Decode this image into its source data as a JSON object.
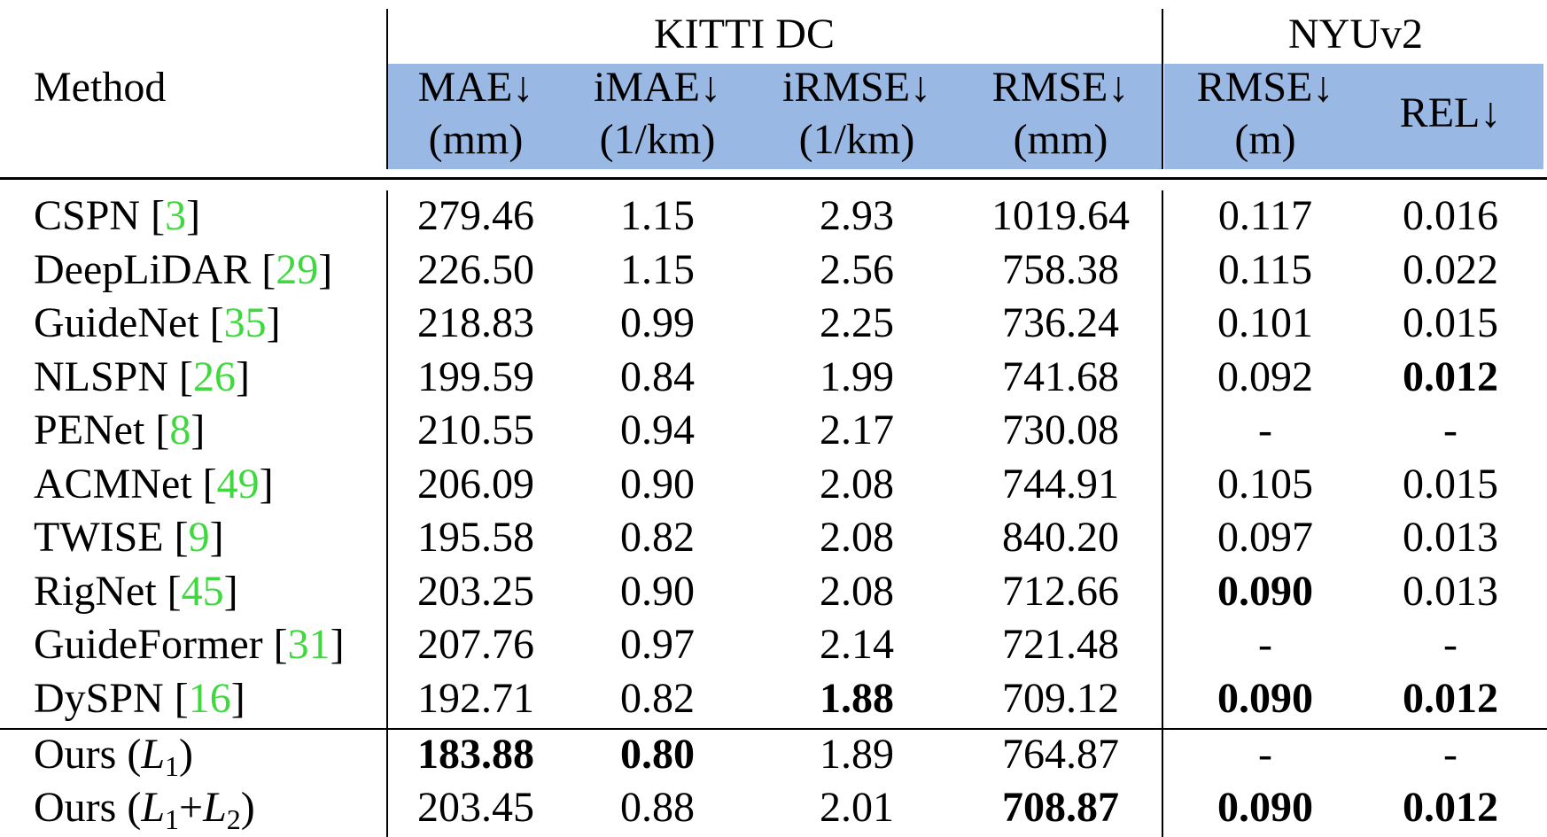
{
  "groups": {
    "kitti": "KITTI DC",
    "nyu": "NYUv2"
  },
  "method_label": "Method",
  "columns": [
    {
      "name": "MAE↓",
      "unit": "(mm)"
    },
    {
      "name": "iMAE↓",
      "unit": "(1/km)"
    },
    {
      "name": "iRMSE↓",
      "unit": "(1/km)"
    },
    {
      "name": "RMSE↓",
      "unit": "(mm)"
    },
    {
      "name": "RMSE↓",
      "unit": "(m)"
    },
    {
      "name": "REL↓",
      "unit": ""
    }
  ],
  "rows": [
    {
      "method": "CSPN",
      "cite": "3",
      "values": [
        "279.46",
        "1.15",
        "2.93",
        "1019.64",
        "0.117",
        "0.016"
      ],
      "bold": [
        false,
        false,
        false,
        false,
        false,
        false
      ]
    },
    {
      "method": "DeepLiDAR",
      "cite": "29",
      "values": [
        "226.50",
        "1.15",
        "2.56",
        "758.38",
        "0.115",
        "0.022"
      ],
      "bold": [
        false,
        false,
        false,
        false,
        false,
        false
      ]
    },
    {
      "method": "GuideNet",
      "cite": "35",
      "values": [
        "218.83",
        "0.99",
        "2.25",
        "736.24",
        "0.101",
        "0.015"
      ],
      "bold": [
        false,
        false,
        false,
        false,
        false,
        false
      ]
    },
    {
      "method": "NLSPN",
      "cite": "26",
      "values": [
        "199.59",
        "0.84",
        "1.99",
        "741.68",
        "0.092",
        "0.012"
      ],
      "bold": [
        false,
        false,
        false,
        false,
        false,
        true
      ]
    },
    {
      "method": "PENet",
      "cite": "8",
      "values": [
        "210.55",
        "0.94",
        "2.17",
        "730.08",
        "-",
        "-"
      ],
      "bold": [
        false,
        false,
        false,
        false,
        false,
        false
      ]
    },
    {
      "method": "ACMNet",
      "cite": "49",
      "values": [
        "206.09",
        "0.90",
        "2.08",
        "744.91",
        "0.105",
        "0.015"
      ],
      "bold": [
        false,
        false,
        false,
        false,
        false,
        false
      ]
    },
    {
      "method": "TWISE",
      "cite": "9",
      "values": [
        "195.58",
        "0.82",
        "2.08",
        "840.20",
        "0.097",
        "0.013"
      ],
      "bold": [
        false,
        false,
        false,
        false,
        false,
        false
      ]
    },
    {
      "method": "RigNet",
      "cite": "45",
      "values": [
        "203.25",
        "0.90",
        "2.08",
        "712.66",
        "0.090",
        "0.013"
      ],
      "bold": [
        false,
        false,
        false,
        false,
        true,
        false
      ]
    },
    {
      "method": "GuideFormer",
      "cite": "31",
      "values": [
        "207.76",
        "0.97",
        "2.14",
        "721.48",
        "-",
        "-"
      ],
      "bold": [
        false,
        false,
        false,
        false,
        false,
        false
      ]
    },
    {
      "method": "DySPN",
      "cite": "16",
      "values": [
        "192.71",
        "0.82",
        "1.88",
        "709.12",
        "0.090",
        "0.012"
      ],
      "bold": [
        false,
        false,
        true,
        false,
        true,
        true
      ]
    }
  ],
  "ours": [
    {
      "prefix": "Ours (",
      "L1": "L",
      "sub1": "1",
      "mid": "",
      "L2": "",
      "sub2": "",
      "suffix": ")",
      "values": [
        "183.88",
        "0.80",
        "1.89",
        "764.87",
        "-",
        "-"
      ],
      "bold": [
        true,
        true,
        false,
        false,
        false,
        false
      ]
    },
    {
      "prefix": "Ours (",
      "L1": "L",
      "sub1": "1",
      "mid": "+",
      "L2": "L",
      "sub2": "2",
      "suffix": ")",
      "values": [
        "203.45",
        "0.88",
        "2.01",
        "708.87",
        "0.090",
        "0.012"
      ],
      "bold": [
        false,
        false,
        false,
        true,
        true,
        true
      ]
    }
  ],
  "colors": {
    "header_bg": "#9ab8e4",
    "cite": "#3fd93f",
    "text": "#000000"
  }
}
